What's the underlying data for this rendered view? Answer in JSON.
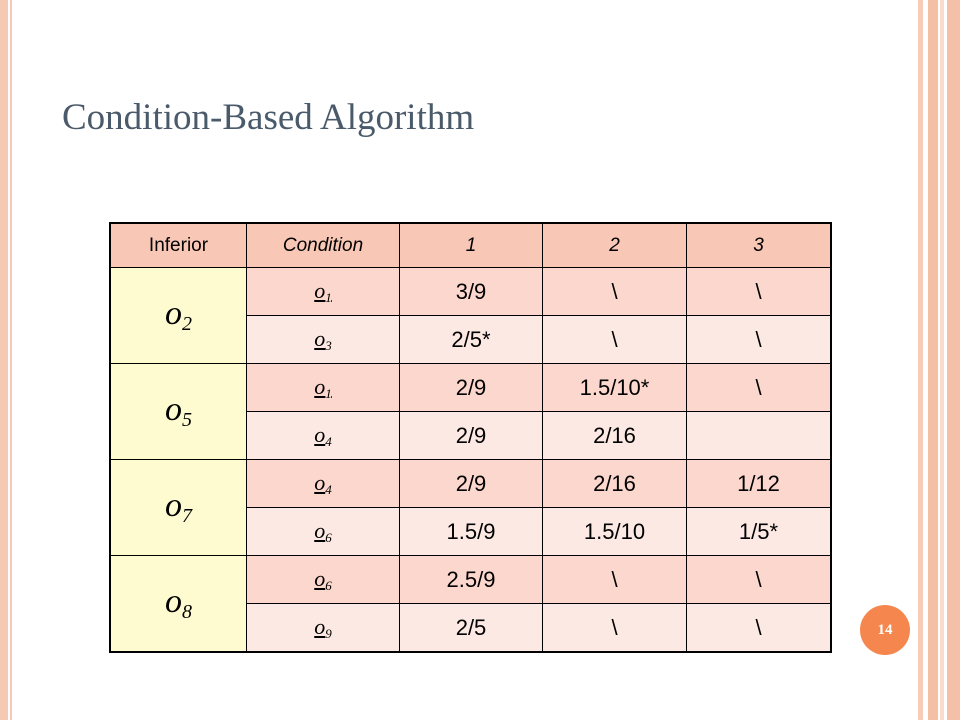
{
  "title": "Condition-Based Algorithm",
  "page_number": "14",
  "table": {
    "headers": [
      "Inferior",
      "Condition",
      "1",
      "2",
      "3"
    ],
    "groups": [
      {
        "inferior": {
          "base": "o",
          "sub": "2"
        },
        "rows": [
          {
            "cond": {
              "base": "o",
              "sub": "1"
            },
            "c1": "3/9",
            "c2": "\\",
            "c3": "\\"
          },
          {
            "cond": {
              "base": "o",
              "sub": "3"
            },
            "c1": "2/5*",
            "c2": "\\",
            "c3": "\\"
          }
        ]
      },
      {
        "inferior": {
          "base": "o",
          "sub": "5"
        },
        "rows": [
          {
            "cond": {
              "base": "o",
              "sub": "1"
            },
            "c1": "2/9",
            "c2": "1.5/10*",
            "c3": "\\"
          },
          {
            "cond": {
              "base": "o",
              "sub": "4"
            },
            "c1": "2/9",
            "c2": "2/16",
            "c3": ""
          }
        ]
      },
      {
        "inferior": {
          "base": "o",
          "sub": "7"
        },
        "rows": [
          {
            "cond": {
              "base": "o",
              "sub": "4"
            },
            "c1": "2/9",
            "c2": "2/16",
            "c3": "1/12"
          },
          {
            "cond": {
              "base": "o",
              "sub": "6"
            },
            "c1": "1.5/9",
            "c2": "1.5/10",
            "c3": "1/5*"
          }
        ]
      },
      {
        "inferior": {
          "base": "o",
          "sub": "8"
        },
        "rows": [
          {
            "cond": {
              "base": "o",
              "sub": "6"
            },
            "c1": "2.5/9",
            "c2": "\\",
            "c3": "\\"
          },
          {
            "cond": {
              "base": "o",
              "sub": "9"
            },
            "c1": "2/5",
            "c2": "\\",
            "c3": "\\"
          }
        ]
      }
    ]
  },
  "colors": {
    "highlight": "#e0201b",
    "header_bg": "#f9c7b6",
    "inferior_bg": "#fdfbcf",
    "row_dark": "#fcd7cd",
    "row_light": "#fde9e4",
    "badge": "#f5874e"
  }
}
